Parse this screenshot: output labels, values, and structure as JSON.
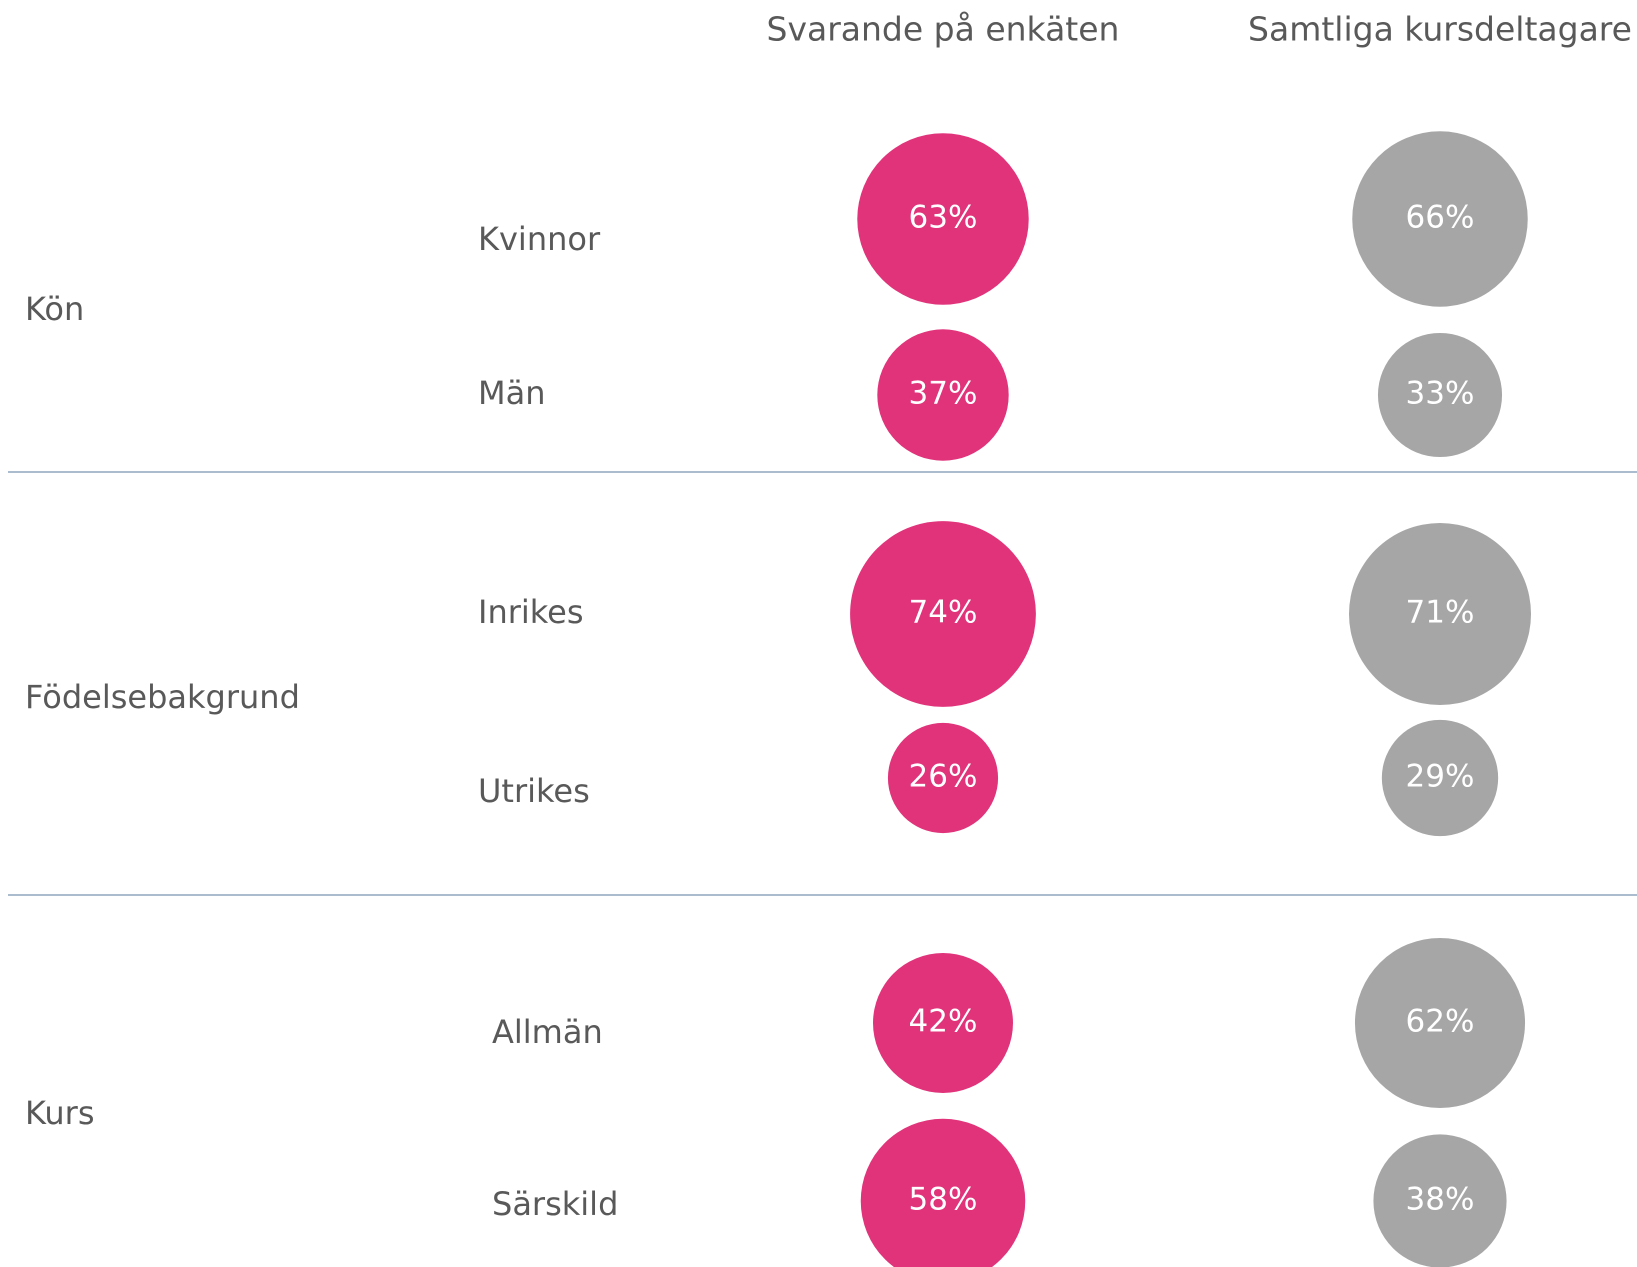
{
  "chart_data": {
    "type": "bubble",
    "groups": [
      {
        "name": "Kön",
        "categories": [
          "Kvinnor",
          "Män"
        ]
      },
      {
        "name": "Födelsebakgrund",
        "categories": [
          "Inrikes",
          "Utrikes"
        ]
      },
      {
        "name": "Kurs",
        "categories": [
          "Allmän",
          "Särskild"
        ]
      }
    ],
    "series": [
      {
        "name": "Svarande på enkäten",
        "color": "#e0337a",
        "values": [
          63,
          37,
          74,
          26,
          42,
          58
        ],
        "value_labels": [
          "63%",
          "37%",
          "74%",
          "26%",
          "42%",
          "58%"
        ]
      },
      {
        "name": "Samtliga kursdeltagare",
        "color": "#a6a6a6",
        "values": [
          66,
          33,
          71,
          29,
          62,
          38
        ],
        "value_labels": [
          "66%",
          "33%",
          "71%",
          "29%",
          "62%",
          "38%"
        ]
      }
    ]
  }
}
